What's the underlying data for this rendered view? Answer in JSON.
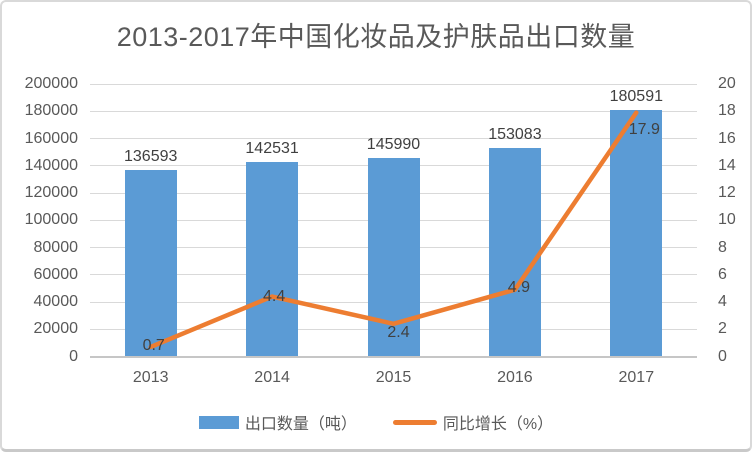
{
  "chart_data": {
    "type": "bar",
    "subtype": "combo-bar-line",
    "title": "2013-2017年中国化妆品及护肤品出口数量",
    "categories": [
      "2013",
      "2014",
      "2015",
      "2016",
      "2017"
    ],
    "series": [
      {
        "name": "出口数量（吨）",
        "type": "bar",
        "axis": "left",
        "color": "#5B9BD5",
        "values": [
          136593,
          142531,
          145990,
          153083,
          180591
        ],
        "labels": [
          "136593",
          "142531",
          "145990",
          "153083",
          "180591"
        ]
      },
      {
        "name": "同比增长（%）",
        "type": "line",
        "axis": "right",
        "color": "#ED7D31",
        "values": [
          0.7,
          4.4,
          2.4,
          4.9,
          17.9
        ],
        "labels": [
          "0.7",
          "4.4",
          "2.4",
          "4.9",
          "17.9"
        ]
      }
    ],
    "left_axis": {
      "min": 0,
      "max": 200000,
      "step": 20000,
      "ticks": [
        0,
        20000,
        40000,
        60000,
        80000,
        100000,
        120000,
        140000,
        160000,
        180000,
        200000
      ]
    },
    "right_axis": {
      "min": 0,
      "max": 20,
      "step": 2,
      "ticks": [
        0,
        2,
        4,
        6,
        8,
        10,
        12,
        14,
        16,
        18,
        20
      ]
    },
    "grid": "horizontal",
    "legend_position": "bottom"
  },
  "legend": {
    "items": [
      {
        "label": "出口数量（吨）",
        "type": "bar"
      },
      {
        "label": "同比增长（%）",
        "type": "line"
      }
    ]
  },
  "colors": {
    "bar": "#5B9BD5",
    "line": "#ED7D31",
    "grid": "#D9D9D9",
    "axis_line": "#C6C6C6",
    "axis_text": "#595959",
    "data_label_text": "#404040",
    "title_text": "#595959",
    "card_border": "#D9D9D9",
    "background": "#FFFFFF"
  }
}
